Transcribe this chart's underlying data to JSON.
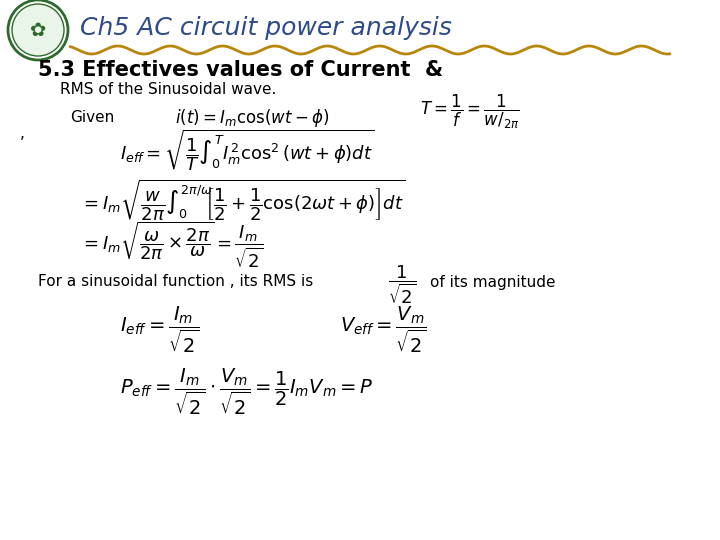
{
  "title": "Ch5 AC circuit power analysis",
  "subtitle": "5.3 Effectives values of Current  &",
  "rms_line": "RMS of the Sinusoidal wave.",
  "bg_color": "#ffffff",
  "title_color": "#2E4A8B",
  "wavy_color": "#B8860B",
  "heading_color": "#000000",
  "body_color": "#000000",
  "logo_color": "#2d6a2d",
  "formulas": [
    "Given",
    "i(t) = I_m \\cos(wt - \\phi)",
    "T = \\frac{1}{f} = \\frac{1}{w/_{2\\pi}}",
    "I_{eff} = \\sqrt{\\frac{1}{T}\\int_0^T I_m^2 \\cos^2(wt+\\phi)dt}",
    "= I_m\\sqrt{\\frac{w}{2\\pi}\\int_0^{2\\pi/\\omega}[\\frac{1}{2}+\\frac{1}{2}\\cos(2\\omega t+\\phi)]dt}",
    "= I_m\\sqrt{\\frac{\\omega}{2\\pi}\\times\\frac{2\\pi}{\\omega}} = \\frac{I_m}{\\sqrt{2}}",
    "For a sinusoidal function , its RMS is",
    "\\frac{1}{\\sqrt{2}}",
    "of its magnitude",
    "I_{eff} = \\frac{I_m}{\\sqrt{2}}",
    "V_{eff} = \\frac{V_m}{\\sqrt{2}}",
    "P_{eff} = \\frac{I_m}{\\sqrt{2}}\\cdot\\frac{V_m}{\\sqrt{2}} = \\frac{1}{2}I_m V_m = P"
  ]
}
